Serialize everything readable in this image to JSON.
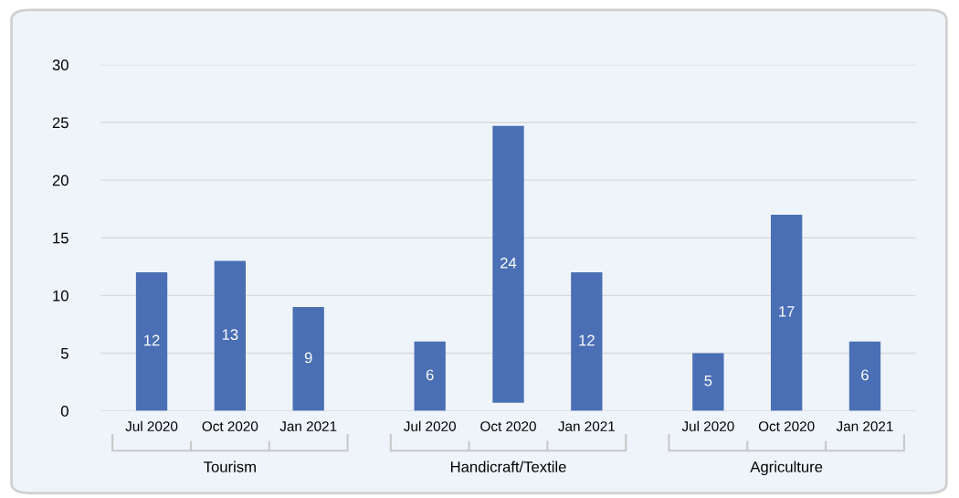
{
  "chart_data": {
    "type": "bar",
    "categories": [
      "Jul 2020",
      "Oct 2020",
      "Jan 2021",
      "Jul 2020",
      "Oct 2020",
      "Jan 2021",
      "Jul 2020",
      "Oct 2020",
      "Jan 2021"
    ],
    "values": [
      12,
      13,
      9,
      6,
      24,
      12,
      5,
      17,
      6
    ],
    "base": [
      0,
      0,
      0,
      0,
      0.7,
      0,
      0,
      0,
      0
    ],
    "color": "#4a6fb5",
    "ylim": [
      0,
      30
    ],
    "yticks": [
      0,
      5,
      10,
      15,
      20,
      25,
      30
    ],
    "grid": "y",
    "data_labels": true,
    "annotations": [
      "Tourism",
      "Handicraft/Textile",
      "Agriculture"
    ]
  }
}
